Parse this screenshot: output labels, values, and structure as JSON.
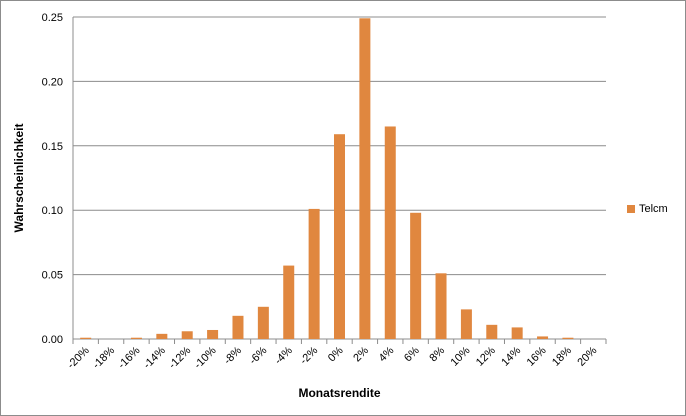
{
  "chart_data": {
    "type": "bar",
    "xlabel": "Monatsrendite",
    "ylabel": "Wahrscheinlichkeit",
    "categories": [
      "-20%",
      "-18%",
      "-16%",
      "-14%",
      "-12%",
      "-10%",
      "-8%",
      "-6%",
      "-4%",
      "-2%",
      "0%",
      "2%",
      "4%",
      "6%",
      "8%",
      "10%",
      "12%",
      "14%",
      "16%",
      "18%",
      "20%"
    ],
    "series": [
      {
        "name": "Telcm",
        "color": "#e0873f",
        "values": [
          0.001,
          0.0,
          0.001,
          0.004,
          0.006,
          0.007,
          0.018,
          0.025,
          0.057,
          0.101,
          0.159,
          0.249,
          0.165,
          0.098,
          0.051,
          0.023,
          0.011,
          0.009,
          0.002,
          0.001,
          0.0
        ]
      }
    ],
    "yticks": [
      "0.00",
      "0.05",
      "0.10",
      "0.15",
      "0.20",
      "0.25"
    ],
    "ylim": [
      0,
      0.25
    ],
    "grid": true,
    "legend_position": "right"
  }
}
